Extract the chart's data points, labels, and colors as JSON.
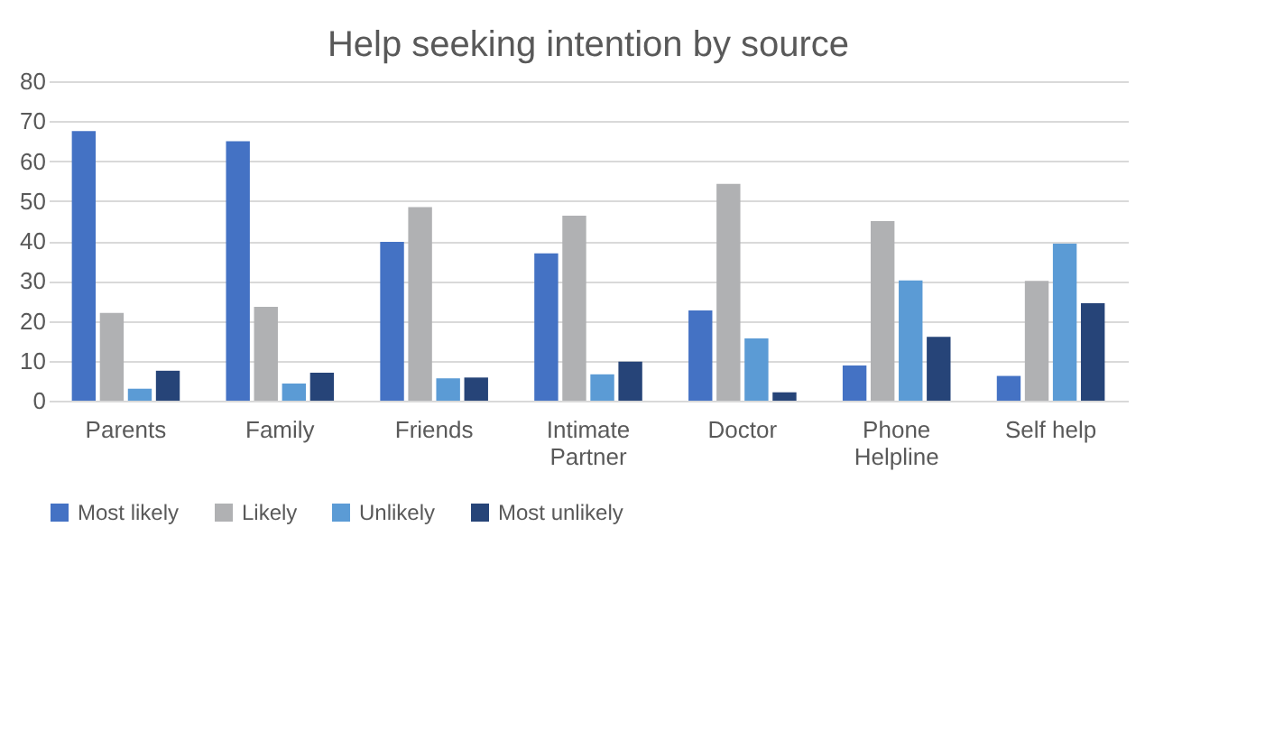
{
  "chart_data": {
    "type": "bar",
    "title": "Help seeking intention by source",
    "categories": [
      "Parents",
      "Family",
      "Friends",
      "Intimate Partner",
      "Doctor",
      "Phone Helpline",
      "Self help"
    ],
    "series": [
      {
        "name": "Most likely",
        "color": "#4472c4",
        "values": [
          67.5,
          65,
          39.8,
          36.9,
          22.6,
          8.8,
          6.2
        ]
      },
      {
        "name": "Likely",
        "color": "#b0b1b3",
        "values": [
          22,
          23.5,
          48.5,
          46.3,
          54.3,
          45,
          30
        ]
      },
      {
        "name": "Unlikely",
        "color": "#5b9bd5",
        "values": [
          3,
          4.3,
          5.6,
          6.6,
          15.6,
          30.1,
          39.3
        ]
      },
      {
        "name": "Most unlikely",
        "color": "#264478",
        "values": [
          7.5,
          7,
          5.8,
          9.8,
          2.1,
          16,
          24.4
        ]
      }
    ],
    "ylim": [
      0,
      80
    ],
    "yticks": [
      0,
      10,
      20,
      30,
      40,
      50,
      60,
      70,
      80
    ],
    "grid": "y",
    "legend": "bottom"
  }
}
